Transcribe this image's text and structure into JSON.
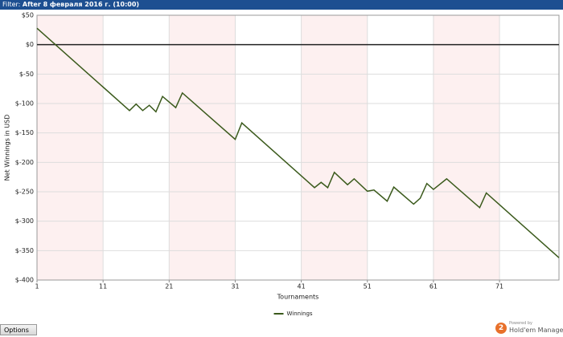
{
  "header": {
    "label": "Filter:",
    "filter": "After 8 февраля 2016 г. (10:00)"
  },
  "chart_data": {
    "type": "line",
    "x_label": "Tournaments",
    "y_label": "Net Winnings in USD",
    "x": [
      1,
      15,
      16,
      17,
      18,
      19,
      20,
      22,
      23,
      31,
      32,
      43,
      44,
      45,
      46,
      48,
      49,
      51,
      52,
      54,
      55,
      58,
      59,
      60,
      61,
      63,
      68,
      69,
      80
    ],
    "series": [
      {
        "name": "Winnings",
        "color": "#3b5a1c",
        "values": [
          28,
          -112,
          -101,
          -112,
          -103,
          -114,
          -88,
          -107,
          -82,
          -161,
          -133,
          -243,
          -234,
          -243,
          -217,
          -238,
          -228,
          -249,
          -247,
          -266,
          -242,
          -271,
          -261,
          -236,
          -246,
          -228,
          -277,
          -252,
          -362
        ]
      }
    ],
    "xlim": [
      1,
      80
    ],
    "xticks": [
      1,
      11,
      21,
      31,
      41,
      51,
      61,
      71
    ],
    "ylim": [
      -400,
      50
    ],
    "yticks": [
      {
        "value": 50,
        "label": "$50"
      },
      {
        "value": 0,
        "label": "$0"
      },
      {
        "value": -50,
        "label": "$-50"
      },
      {
        "value": -100,
        "label": "$-100"
      },
      {
        "value": -150,
        "label": "$-150"
      },
      {
        "value": -200,
        "label": "$-200"
      },
      {
        "value": -250,
        "label": "$-250"
      },
      {
        "value": -300,
        "label": "$-300"
      },
      {
        "value": -350,
        "label": "$-350"
      },
      {
        "value": -400,
        "label": "$-400"
      }
    ],
    "grid": true,
    "legend": "bottom"
  },
  "footer": {
    "options": "Options",
    "logo": "2",
    "powered_by": "Powered by",
    "brand": "Hold'em Manager"
  }
}
